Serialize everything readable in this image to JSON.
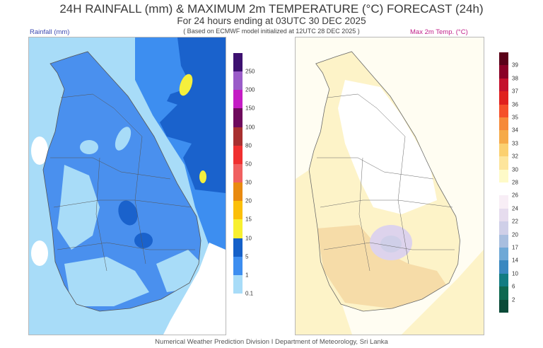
{
  "header": {
    "title": "24H RAINFALL (mm) & MAXIMUM 2m TEMPERATURE (°C) FORECAST (24h)",
    "subtitle": "For 24 hours ending at 03UTC 30 DEC 2025",
    "basis": "( Based on ECMWF model initialized at 12UTC 28 DEC 2025 )"
  },
  "rainfall_map": {
    "label": "Rainfall (mm)",
    "legend": {
      "ticks": [
        "250",
        "200",
        "150",
        "100",
        "80",
        "50",
        "30",
        "20",
        "15",
        "10",
        "5",
        "1",
        "0.1"
      ],
      "colors": [
        "#3d1170",
        "#9a5cc8",
        "#c41cc4",
        "#6e0a5c",
        "#a83030",
        "#f03030",
        "#f06060",
        "#e88a10",
        "#fbbf0a",
        "#f8f030",
        "#1560c8",
        "#3d8ef0",
        "#a8dcf8"
      ]
    },
    "colors": {
      "light": "#a8dcf8",
      "medium": "#4a90ee",
      "dark": "#1a62cc",
      "heavy": "#f5ef3c"
    }
  },
  "temperature_map": {
    "label": "Max 2m Temp. (°C)",
    "legend": {
      "ticks": [
        "39",
        "38",
        "37",
        "36",
        "35",
        "34",
        "33",
        "32",
        "30",
        "28",
        "26",
        "24",
        "22",
        "20",
        "17",
        "14",
        "10",
        "6",
        "2"
      ],
      "colors": [
        "#5a0018",
        "#8a0026",
        "#c4102c",
        "#e0201e",
        "#f5502a",
        "#f68a3a",
        "#f6aa48",
        "#fbd070",
        "#fde59c",
        "#fefac8",
        "#ffffff",
        "#f8eef6",
        "#e6dcee",
        "#cfcfe8",
        "#a8bedf",
        "#6ea8d6",
        "#3a88c0",
        "#127c82",
        "#0e6850",
        "#0a4a38"
      ]
    },
    "colors": {
      "base": "#fdf3c8",
      "warm": "#f6dca8",
      "cool": "#ddd3ec",
      "sea": "#fffdf2"
    }
  },
  "footer": {
    "text": "Numerical Weather Prediction Division I Department of Meteorology, Sri Lanka"
  }
}
